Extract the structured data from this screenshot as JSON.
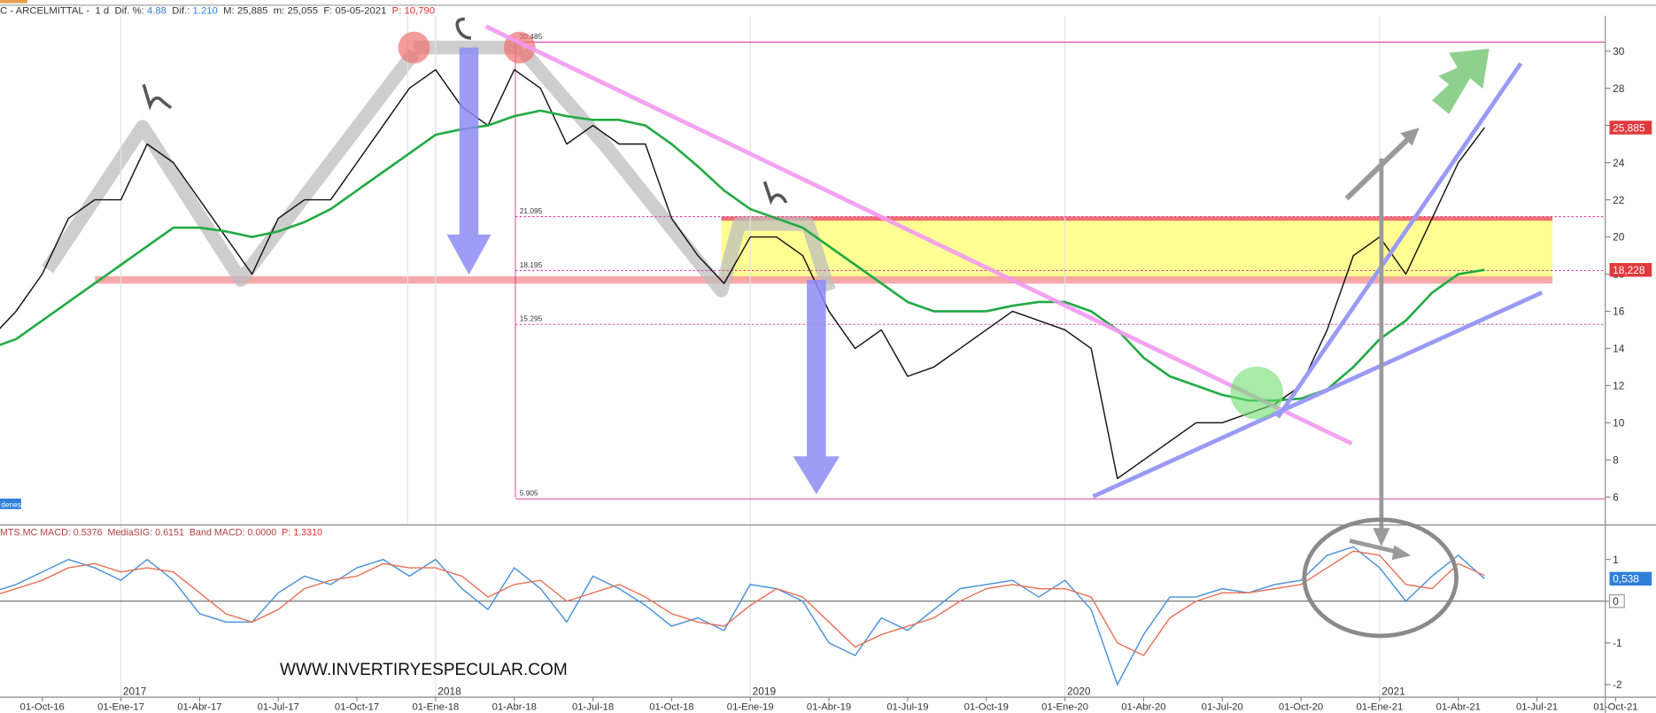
{
  "header": {
    "segments": [
      {
        "text": "C - ARCELMITTAL -  1 d  Dif. %: ",
        "color": "#333333"
      },
      {
        "text": "4.88",
        "color": "#2f7fd8"
      },
      {
        "text": "  Dif.: ",
        "color": "#333333"
      },
      {
        "text": "1.210",
        "color": "#2f7fd8"
      },
      {
        "text": "  M: 25,885  m: 25,055  F: 05-05-2021  ",
        "color": "#333333"
      },
      {
        "text": "P: 10,790",
        "color": "#e03030"
      }
    ]
  },
  "watermark": "WWW.INVERTIRYESPECULAR.COM",
  "tag": "denes",
  "chart_data": [
    {
      "type": "line",
      "x": [
        "01-Ago-16",
        "01-Sep-16",
        "01-Oct-16",
        "01-Nov-16",
        "01-Dic-16",
        "01-Ene-17",
        "01-Feb-17",
        "01-Mar-17",
        "01-Abr-17",
        "01-May-17",
        "01-Jun-17",
        "01-Jul-17",
        "01-Ago-17",
        "01-Sep-17",
        "01-Oct-17",
        "01-Nov-17",
        "01-Dic-17",
        "01-Ene-18",
        "01-Feb-18",
        "01-Mar-18",
        "01-Abr-18",
        "01-May-18",
        "01-Jun-18",
        "01-Jul-18",
        "01-Ago-18",
        "01-Sep-18",
        "01-Oct-18",
        "01-Nov-18",
        "01-Dic-18",
        "01-Ene-19",
        "01-Feb-19",
        "01-Mar-19",
        "01-Abr-19",
        "01-May-19",
        "01-Jun-19",
        "01-Jul-19",
        "01-Ago-19",
        "01-Sep-19",
        "01-Oct-19",
        "01-Nov-19",
        "01-Dic-19",
        "01-Ene-20",
        "01-Feb-20",
        "01-Mar-20",
        "01-Abr-20",
        "01-May-20",
        "01-Jun-20",
        "01-Jul-20",
        "01-Ago-20",
        "01-Sep-20",
        "01-Oct-20",
        "01-Nov-20",
        "01-Dic-20",
        "01-Ene-21",
        "01-Feb-21",
        "01-Mar-21",
        "01-Abr-21",
        "01-May-21",
        "01-Jun-21",
        "01-Jul-21",
        "01-Ago-21",
        "01-Sep-21",
        "01-Oct-21"
      ],
      "xticks": [
        "01-Oct-16",
        "01-Ene-17",
        "01-Abr-17",
        "01-Jul-17",
        "01-Oct-17",
        "01-Ene-18",
        "01-Abr-18",
        "01-Jul-18",
        "01-Oct-18",
        "01-Ene-19",
        "01-Abr-19",
        "01-Jul-19",
        "01-Oct-19",
        "01-Ene-20",
        "01-Abr-20",
        "01-Jul-20",
        "01-Oct-20",
        "01-Ene-21",
        "01-Abr-21",
        "01-Jul-21",
        "01-Oct-21"
      ],
      "year_labels": [
        {
          "at": "01-Ene-17",
          "label": "2017"
        },
        {
          "at": "01-Ene-18",
          "label": "2018"
        },
        {
          "at": "01-Ene-19",
          "label": "2019"
        },
        {
          "at": "01-Ene-20",
          "label": "2020"
        },
        {
          "at": "01-Ene-21",
          "label": "2021"
        }
      ],
      "ylim": [
        4.5,
        31.9
      ],
      "yticks": [
        6,
        8,
        10,
        12,
        14,
        16,
        18,
        20,
        22,
        24,
        26,
        28,
        30
      ],
      "levels": [
        30.485,
        21.095,
        18.195,
        15.295,
        5.905
      ],
      "level_color": "#e0409a",
      "series": [
        {
          "color": "#111111",
          "label_color": "#e0393e",
          "last_value_label": "25,885",
          "values": [
            14.5,
            16,
            18,
            21,
            22,
            22,
            25,
            24,
            22,
            20,
            18,
            21,
            22,
            22,
            24,
            26,
            28,
            29,
            27,
            26,
            29,
            28,
            25,
            26,
            25,
            25,
            21,
            19,
            17.5,
            20,
            20,
            19,
            16,
            14,
            15,
            12.5,
            13,
            14,
            15,
            16,
            15.5,
            15,
            14,
            7,
            8,
            9,
            10,
            10,
            10.5,
            11,
            12,
            15,
            19,
            20,
            18,
            21,
            24,
            25.885,
            null,
            null,
            null,
            null,
            null
          ]
        },
        {
          "color": "#22aa44",
          "label_color": "#e0393e",
          "last_value_label": "18,228",
          "values": [
            14,
            14.5,
            15.5,
            16.5,
            17.5,
            18.5,
            19.5,
            20.5,
            20.5,
            20.3,
            20,
            20.3,
            20.8,
            21.5,
            22.5,
            23.5,
            24.5,
            25.5,
            25.8,
            26,
            26.5,
            26.8,
            26.5,
            26.3,
            26.3,
            26,
            25,
            23.8,
            22.5,
            21.5,
            21,
            20.5,
            19.5,
            18.5,
            17.5,
            16.5,
            16,
            16,
            16,
            16.3,
            16.5,
            16.5,
            16,
            15,
            13.5,
            12.5,
            12,
            11.5,
            11.2,
            11.2,
            11.3,
            11.8,
            13,
            14.5,
            15.5,
            17,
            18,
            18.228,
            null,
            null,
            null,
            null,
            null
          ]
        }
      ]
    },
    {
      "type": "line",
      "header": [
        {
          "text": "MTS.MC MACD: 0.5376  MediaSIG: 0.6151  Band MACD: 0.0000  ",
          "color": "#b04040"
        },
        {
          "text": "P: 1.3310",
          "color": "#e03030"
        }
      ],
      "ylim": [
        -2.3,
        1.75
      ],
      "yticks": [
        1,
        0,
        -1,
        -2
      ],
      "series": [
        {
          "color": "#4a90d9",
          "label_color": "#2f7fd8",
          "last_value_label": "0,538",
          "values": [
            0.2,
            0.4,
            0.7,
            1.0,
            0.8,
            0.5,
            1.0,
            0.5,
            -0.3,
            -0.5,
            -0.5,
            0.2,
            0.6,
            0.4,
            0.8,
            1.0,
            0.6,
            1.0,
            0.3,
            -0.2,
            0.8,
            0.3,
            -0.5,
            0.6,
            0.3,
            -0.1,
            -0.6,
            -0.4,
            -0.7,
            0.4,
            0.3,
            0.0,
            -1.0,
            -1.3,
            -0.4,
            -0.7,
            -0.2,
            0.3,
            0.4,
            0.5,
            0.1,
            0.5,
            -0.2,
            -2.0,
            -0.8,
            0.1,
            0.1,
            0.3,
            0.2,
            0.4,
            0.5,
            1.1,
            1.3,
            0.8,
            0.0,
            0.6,
            1.1,
            0.538,
            null,
            null,
            null,
            null,
            null
          ]
        },
        {
          "color": "#e8735a",
          "values": [
            0.1,
            0.3,
            0.5,
            0.8,
            0.9,
            0.7,
            0.8,
            0.7,
            0.2,
            -0.3,
            -0.5,
            -0.2,
            0.3,
            0.5,
            0.6,
            0.9,
            0.8,
            0.8,
            0.6,
            0.1,
            0.4,
            0.5,
            0.0,
            0.2,
            0.4,
            0.1,
            -0.3,
            -0.5,
            -0.6,
            -0.1,
            0.3,
            0.1,
            -0.5,
            -1.1,
            -0.8,
            -0.6,
            -0.4,
            0.0,
            0.3,
            0.4,
            0.3,
            0.3,
            0.1,
            -1.0,
            -1.3,
            -0.4,
            0.0,
            0.2,
            0.2,
            0.3,
            0.4,
            0.8,
            1.2,
            1.1,
            0.4,
            0.3,
            0.9,
            0.615,
            null,
            null,
            null,
            null,
            null
          ]
        }
      ]
    }
  ]
}
